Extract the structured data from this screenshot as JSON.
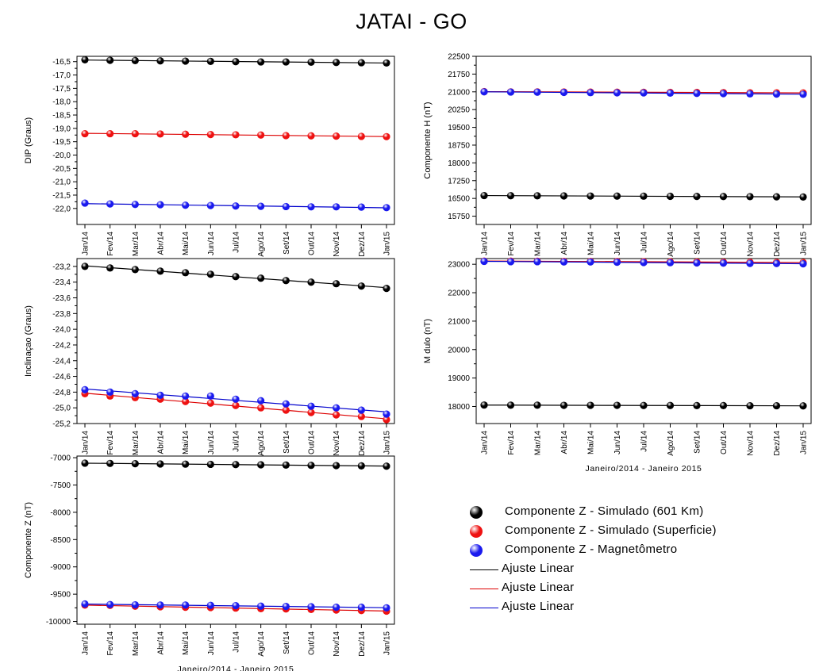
{
  "figure": {
    "title": "JATAI - GO",
    "legend": [
      {
        "label": "Componente Z - Simulado (601 Km)",
        "kind": "marker",
        "color": "#000000"
      },
      {
        "label": "Componente Z - Simulado (Superficie)",
        "kind": "marker",
        "color": "#ee1111"
      },
      {
        "label": "Componente Z - Magnetômetro",
        "kind": "marker",
        "color": "#1a1aee"
      },
      {
        "label": "Ajuste Linear",
        "kind": "line",
        "color": "#000000"
      },
      {
        "label": "Ajuste Linear",
        "kind": "line",
        "color": "#dd0000"
      },
      {
        "label": "Ajuste Linear",
        "kind": "line",
        "color": "#0000cc"
      }
    ]
  },
  "chart_data": [
    {
      "type": "scatter",
      "ylabel": "DIP (Graus)",
      "xlabel": "",
      "categories": [
        "Jan/14",
        "Fev/14",
        "Mar/14",
        "Abr/14",
        "Mai/14",
        "Jun/14",
        "Jul/14",
        "Ago/14",
        "Set/14",
        "Out/14",
        "Nov/14",
        "Dez/14",
        "Jan/15"
      ],
      "ylim": [
        -22.6,
        -16.3
      ],
      "yticks": [
        -16.5,
        -17.0,
        -17.5,
        -18.0,
        -18.5,
        -19.0,
        -19.5,
        -20.0,
        -20.5,
        -21.0,
        -21.5,
        -22.0
      ],
      "ytick_labels": [
        "-16,5",
        "-17,0",
        "-17,5",
        "-18,0",
        "-18,5",
        "-19,0",
        "-19,5",
        "-20,0",
        "-20,5",
        "-21,0",
        "-21,5",
        "-22,0"
      ],
      "series": [
        {
          "color": "#000000",
          "fit_color": "#000000",
          "values": [
            -16.43,
            -16.45,
            -16.46,
            -16.47,
            -16.48,
            -16.49,
            -16.5,
            -16.51,
            -16.51,
            -16.52,
            -16.53,
            -16.54,
            -16.55
          ]
        },
        {
          "color": "#ee1111",
          "fit_color": "#dd0000",
          "values": [
            -19.2,
            -19.2,
            -19.2,
            -19.21,
            -19.22,
            -19.23,
            -19.24,
            -19.25,
            -19.27,
            -19.28,
            -19.29,
            -19.3,
            -19.31
          ]
        },
        {
          "color": "#1a1aee",
          "fit_color": "#0000cc",
          "values": [
            -21.8,
            -21.83,
            -21.85,
            -21.86,
            -21.88,
            -21.89,
            -21.91,
            -21.92,
            -21.93,
            -21.94,
            -21.94,
            -21.95,
            -21.97
          ]
        }
      ]
    },
    {
      "type": "scatter",
      "ylabel": "Componente H (nT)",
      "xlabel": "",
      "categories": [
        "Jan/14",
        "Fev/14",
        "Mar/14",
        "Abr/14",
        "Mai/14",
        "Jun/14",
        "Jul/14",
        "Ago/14",
        "Set/14",
        "Out/14",
        "Nov/14",
        "Dez/14",
        "Jan/15"
      ],
      "ylim": [
        15400,
        22500
      ],
      "yticks": [
        15750,
        16500,
        17250,
        18000,
        18750,
        19500,
        20250,
        21000,
        21750,
        22500
      ],
      "ytick_labels": [
        "15750",
        "16500",
        "17250",
        "18000",
        "18750",
        "19500",
        "20250",
        "21000",
        "21750",
        "22500"
      ],
      "series": [
        {
          "color": "#000000",
          "fit_color": "#000000",
          "values": [
            16620,
            16615,
            16610,
            16605,
            16600,
            16598,
            16595,
            16590,
            16585,
            16580,
            16575,
            16568,
            16560
          ]
        },
        {
          "color": "#ee1111",
          "fit_color": "#dd0000",
          "values": [
            21010,
            21000,
            21000,
            20995,
            20990,
            20985,
            20980,
            20978,
            20975,
            20970,
            20960,
            20960,
            20955
          ]
        },
        {
          "color": "#1a1aee",
          "fit_color": "#0000cc",
          "values": [
            21000,
            20990,
            20985,
            20975,
            20965,
            20960,
            20955,
            20945,
            20935,
            20925,
            20915,
            20905,
            20895
          ]
        }
      ]
    },
    {
      "type": "scatter",
      "ylabel": "Inclinaçao (Graus)",
      "xlabel": "",
      "categories": [
        "Jan/14",
        "Fev/14",
        "Mar/14",
        "Abr/14",
        "Mai/14",
        "Jun/14",
        "Jul/14",
        "Ago/14",
        "Set/14",
        "Out/14",
        "Nov/14",
        "Dez/14",
        "Jan/15"
      ],
      "ylim": [
        -25.2,
        -23.1
      ],
      "yticks": [
        -23.2,
        -23.4,
        -23.6,
        -23.8,
        -24.0,
        -24.2,
        -24.4,
        -24.6,
        -24.8,
        -25.0,
        -25.2
      ],
      "ytick_labels": [
        "-23,2",
        "-23,4",
        "-23,6",
        "-23,8",
        "-24,0",
        "-24,2",
        "-24,4",
        "-24,6",
        "-24,8",
        "-25,0",
        "-25,2"
      ],
      "series": [
        {
          "color": "#000000",
          "fit_color": "#000000",
          "values": [
            -23.2,
            -23.22,
            -23.24,
            -23.26,
            -23.28,
            -23.3,
            -23.33,
            -23.35,
            -23.38,
            -23.4,
            -23.42,
            -23.45,
            -23.48
          ]
        },
        {
          "color": "#ee1111",
          "fit_color": "#dd0000",
          "values": [
            -24.82,
            -24.85,
            -24.87,
            -24.89,
            -24.92,
            -24.94,
            -24.97,
            -25.0,
            -25.03,
            -25.06,
            -25.09,
            -25.11,
            -25.15
          ]
        },
        {
          "color": "#1a1aee",
          "fit_color": "#0000cc",
          "values": [
            -24.77,
            -24.8,
            -24.82,
            -24.84,
            -24.85,
            -24.85,
            -24.89,
            -24.91,
            -24.95,
            -24.98,
            -25.0,
            -25.03,
            -25.08
          ]
        }
      ]
    },
    {
      "type": "scatter",
      "ylabel": "M dulo (nT)",
      "xlabel": "Janeiro/2014 - Janeiro 2015",
      "categories": [
        "Jan/14",
        "Fev/14",
        "Mar/14",
        "Abr/14",
        "Mai/14",
        "Jun/14",
        "Jul/14",
        "Ago/14",
        "Set/14",
        "Out/14",
        "Nov/14",
        "Dez/14",
        "Jan/15"
      ],
      "ylim": [
        17400,
        23200
      ],
      "yticks": [
        18000,
        19000,
        20000,
        21000,
        22000,
        23000
      ],
      "ytick_labels": [
        "18000",
        "19000",
        "20000",
        "21000",
        "22000",
        "23000"
      ],
      "series": [
        {
          "color": "#000000",
          "fit_color": "#000000",
          "values": [
            18050,
            18045,
            18045,
            18040,
            18040,
            18040,
            18035,
            18035,
            18030,
            18030,
            18025,
            18025,
            18020
          ]
        },
        {
          "color": "#ee1111",
          "fit_color": "#dd0000",
          "values": [
            23110,
            23110,
            23105,
            23100,
            23100,
            23095,
            23090,
            23085,
            23080,
            23075,
            23070,
            23065,
            23060
          ]
        },
        {
          "color": "#1a1aee",
          "fit_color": "#0000cc",
          "values": [
            23100,
            23090,
            23090,
            23080,
            23080,
            23070,
            23060,
            23055,
            23045,
            23040,
            23030,
            23025,
            23015
          ]
        }
      ]
    },
    {
      "type": "scatter",
      "ylabel": "Componente Z (nT)",
      "xlabel": "Janeiro/2014 - Janeiro 2015",
      "categories": [
        "Jan/14",
        "Fev/14",
        "Mar/14",
        "Abr/14",
        "Mai/14",
        "Jun/14",
        "Jul/14",
        "Ago/14",
        "Set/14",
        "Out/14",
        "Nov/14",
        "Dez/14",
        "Jan/15"
      ],
      "ylim": [
        -10050,
        -6970
      ],
      "yticks": [
        -7000,
        -7500,
        -8000,
        -8500,
        -9000,
        -9500,
        -10000
      ],
      "ytick_labels": [
        "-7000",
        "-7500",
        "-8000",
        "-8500",
        "-9000",
        "-9500",
        "-10000"
      ],
      "series": [
        {
          "color": "#000000",
          "fit_color": "#000000",
          "values": [
            -7100,
            -7105,
            -7110,
            -7115,
            -7118,
            -7122,
            -7126,
            -7130,
            -7135,
            -7140,
            -7145,
            -7150,
            -7155
          ]
        },
        {
          "color": "#ee1111",
          "fit_color": "#dd0000",
          "values": [
            -9700,
            -9705,
            -9720,
            -9730,
            -9740,
            -9745,
            -9755,
            -9765,
            -9770,
            -9780,
            -9790,
            -9800,
            -9810
          ]
        },
        {
          "color": "#1a1aee",
          "fit_color": "#0000cc",
          "values": [
            -9680,
            -9690,
            -9695,
            -9700,
            -9700,
            -9705,
            -9710,
            -9720,
            -9725,
            -9730,
            -9740,
            -9740,
            -9750
          ]
        }
      ]
    }
  ]
}
